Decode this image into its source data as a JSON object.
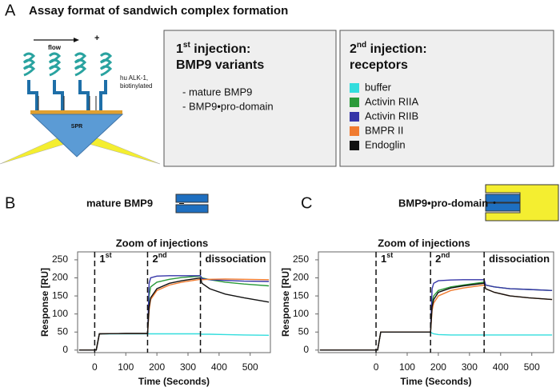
{
  "panel_a": {
    "label": "A",
    "title": "Assay format of sandwich complex formation",
    "diagram": {
      "flow": "flow",
      "plus": "+",
      "ligand": [
        "hu ALK-1,",
        "biotinylated"
      ],
      "sensor": "SPR"
    },
    "box_1": {
      "heading": {
        "num": "1",
        "sup": "st",
        "rest": " injection:"
      },
      "subheading": "BMP9 variants",
      "items": [
        "- mature BMP9",
        "- BMP9•pro-domain"
      ]
    },
    "box_2": {
      "heading": {
        "num": "2",
        "sup": "nd",
        "rest": " injection:"
      },
      "subheading": "receptors"
    }
  },
  "chart_data": [
    {
      "type": "line",
      "panel_label": "B",
      "sample": "mature BMP9",
      "title": "Zoom of injections",
      "x_label": "Time (Seconds)",
      "y_label": "Response [RU]",
      "x": [
        -50,
        0,
        5,
        15,
        100,
        170,
        175,
        180,
        200,
        240,
        280,
        340,
        345,
        370,
        420,
        480,
        560
      ],
      "xlim": [
        -55,
        565
      ],
      "ylim": [
        -7,
        272
      ],
      "xticks": [
        0,
        100,
        200,
        300,
        400,
        500
      ],
      "yticks": [
        0,
        50,
        100,
        150,
        200,
        250
      ],
      "markers": [
        0,
        170,
        340
      ],
      "annotations": [
        {
          "num": "1",
          "sup": "st"
        },
        {
          "num": "2",
          "sup": "nd"
        },
        {
          "num": "dissociation",
          "sup": ""
        }
      ],
      "series": [
        {
          "name": "buffer",
          "color": "#33dddd",
          "values": [
            0,
            0,
            0,
            45,
            45,
            45,
            45,
            45,
            45,
            45,
            45,
            45,
            44,
            44,
            43,
            42,
            41
          ]
        },
        {
          "name": "Activin RIIA",
          "color": "#2a9a3a",
          "values": [
            0,
            0,
            0,
            45,
            46,
            46,
            150,
            175,
            188,
            196,
            201,
            205,
            200,
            195,
            188,
            183,
            178
          ]
        },
        {
          "name": "Activin RIIB",
          "color": "#3535a8",
          "values": [
            0,
            0,
            0,
            45,
            46,
            46,
            185,
            200,
            205,
            206,
            206,
            206,
            198,
            195,
            193,
            191,
            190
          ]
        },
        {
          "name": "BMPR II",
          "color": "#f07b30",
          "values": [
            0,
            0,
            0,
            45,
            46,
            46,
            110,
            140,
            165,
            180,
            188,
            196,
            195,
            196,
            197,
            196,
            195
          ]
        },
        {
          "name": "Endoglin",
          "color": "#111111",
          "values": [
            0,
            0,
            0,
            45,
            46,
            46,
            120,
            145,
            170,
            185,
            192,
            200,
            185,
            170,
            155,
            145,
            133
          ]
        }
      ]
    },
    {
      "type": "line",
      "panel_label": "C",
      "sample": "BMP9•pro-domain",
      "title": "Zoom of injections",
      "x_label": "Time (Seconds)",
      "y_label": "Response [RU]",
      "x": [
        -180,
        0,
        5,
        15,
        100,
        175,
        180,
        185,
        200,
        240,
        280,
        347,
        352,
        380,
        430,
        490,
        565
      ],
      "xlim": [
        -185,
        570
      ],
      "ylim": [
        -7,
        272
      ],
      "xticks": [
        0,
        100,
        200,
        300,
        400,
        500
      ],
      "yticks": [
        0,
        50,
        100,
        150,
        200,
        250
      ],
      "markers": [
        0,
        175,
        347
      ],
      "annotations": [
        {
          "num": "1",
          "sup": "st"
        },
        {
          "num": "2",
          "sup": "nd"
        },
        {
          "num": "dissociation",
          "sup": ""
        }
      ],
      "series": [
        {
          "name": "buffer",
          "color": "#33dddd",
          "values": [
            0,
            0,
            0,
            50,
            50,
            50,
            47,
            45,
            43,
            42,
            42,
            42,
            42,
            42,
            42,
            42,
            42
          ]
        },
        {
          "name": "Activin RIIA",
          "color": "#2a9a3a",
          "values": [
            0,
            0,
            0,
            50,
            50,
            50,
            130,
            150,
            165,
            175,
            180,
            188,
            180,
            175,
            170,
            168,
            165
          ]
        },
        {
          "name": "Activin RIIB",
          "color": "#3535a8",
          "values": [
            0,
            0,
            0,
            50,
            50,
            50,
            170,
            185,
            192,
            194,
            195,
            195,
            180,
            175,
            170,
            168,
            165
          ]
        },
        {
          "name": "BMPR II",
          "color": "#f07b30",
          "values": [
            0,
            0,
            0,
            50,
            50,
            50,
            110,
            130,
            150,
            165,
            172,
            180,
            170,
            160,
            150,
            145,
            140
          ]
        },
        {
          "name": "Endoglin",
          "color": "#111111",
          "values": [
            0,
            0,
            0,
            50,
            50,
            50,
            120,
            140,
            160,
            172,
            178,
            185,
            170,
            160,
            150,
            145,
            140
          ]
        }
      ]
    }
  ]
}
